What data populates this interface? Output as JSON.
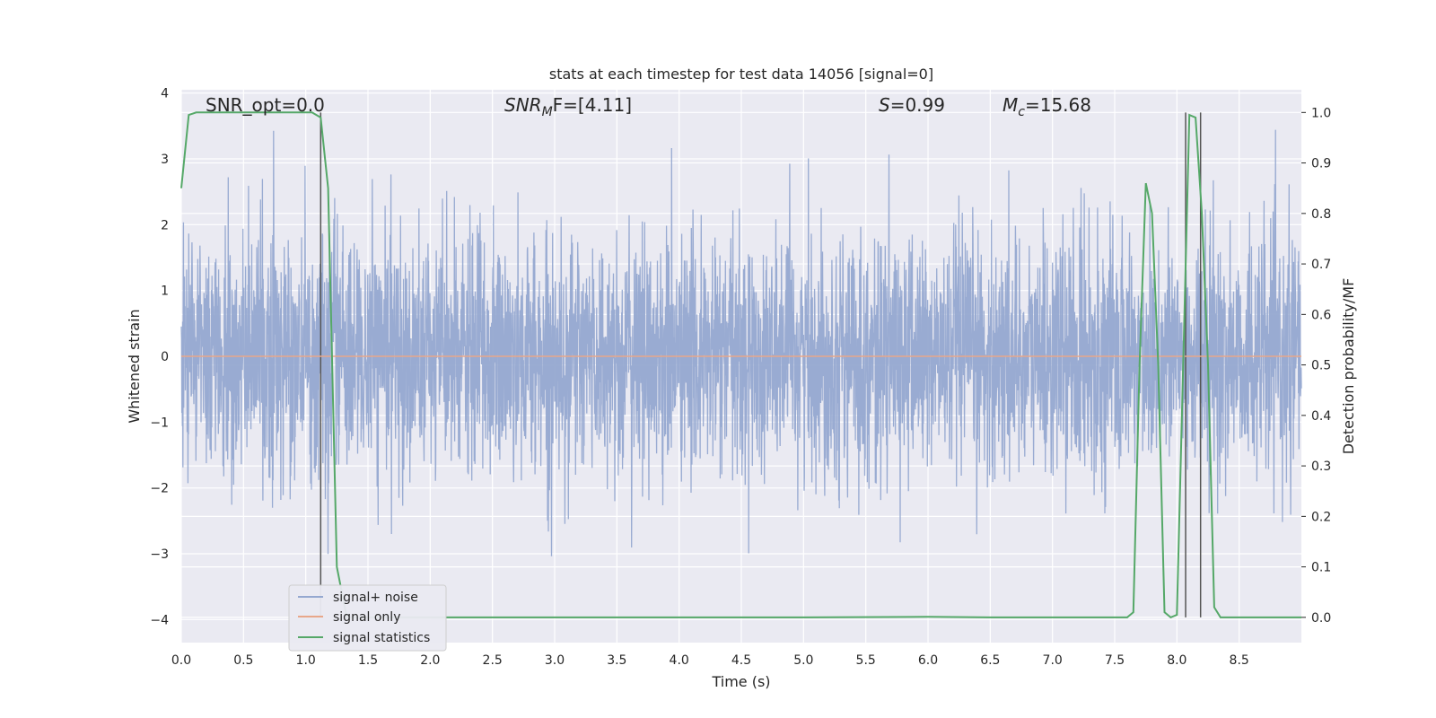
{
  "chart_data": {
    "type": "line",
    "title": "stats at each timestep for test data 14056 [signal=0]",
    "xlabel": "Time (s)",
    "ylabel": "Whitened strain",
    "y2label": "Detection probability/MF",
    "xlim": [
      0.0,
      9.0
    ],
    "ylim": [
      -4.35,
      4.05
    ],
    "y2lim": [
      -0.05,
      1.045
    ],
    "xticks": [
      "0.0",
      "0.5",
      "1.0",
      "1.5",
      "2.0",
      "2.5",
      "3.0",
      "3.5",
      "4.0",
      "4.5",
      "5.0",
      "5.5",
      "6.0",
      "6.5",
      "7.0",
      "7.5",
      "8.0",
      "8.5"
    ],
    "yticks": [
      "4",
      "3",
      "2",
      "1",
      "0",
      "−1",
      "−2",
      "−3",
      "−4"
    ],
    "y2ticks": [
      "1.0",
      "0.9",
      "0.8",
      "0.7",
      "0.6",
      "0.5",
      "0.4",
      "0.3",
      "0.2",
      "0.1",
      "0.0"
    ],
    "grid": true,
    "annotations": {
      "snr_opt": "SNR_opt=0.0",
      "snr_mf_italic": "SNR",
      "snr_mf_sub": "M",
      "snr_mf_rest": "F=[4.11]",
      "s_italic": "S",
      "s_rest": "=0.99",
      "mc_italic": "M",
      "mc_sub": "c",
      "mc_rest": "=15.68"
    },
    "vertical_lines_x": [
      1.12,
      8.07,
      8.19
    ],
    "series": [
      {
        "name": "signal+ noise",
        "color": "#95a8d0",
        "axis": "left",
        "description": "whitened noise, approx std 0.9",
        "noise_std": 0.9
      },
      {
        "name": "signal only",
        "color": "#e8a78a",
        "axis": "left",
        "constant": 0.0
      },
      {
        "name": "signal statistics",
        "color": "#55a868",
        "axis": "right",
        "x": [
          0.0,
          0.06,
          0.12,
          0.3,
          0.6,
          0.9,
          1.05,
          1.12,
          1.18,
          1.25,
          1.33,
          1.5,
          3.0,
          5.0,
          6.0,
          6.5,
          7.6,
          7.65,
          7.7,
          7.75,
          7.8,
          7.85,
          7.9,
          7.95,
          8.0,
          8.05,
          8.1,
          8.15,
          8.2,
          8.25,
          8.3,
          8.35,
          8.5,
          9.0
        ],
        "y": [
          0.85,
          0.995,
          1.0,
          1.0,
          1.0,
          1.0,
          1.0,
          0.99,
          0.85,
          0.1,
          0.0,
          0.0,
          0.0,
          0.0,
          0.001,
          0.0,
          0.0,
          0.01,
          0.5,
          0.86,
          0.8,
          0.5,
          0.01,
          0.0,
          0.005,
          0.5,
          0.995,
          0.99,
          0.8,
          0.5,
          0.02,
          0.0,
          0.0,
          0.0
        ]
      }
    ],
    "legend": {
      "placement": "lower-left",
      "entries": [
        "signal+ noise",
        "signal only",
        "signal statistics"
      ]
    }
  },
  "colors": {
    "plot_bg": "#eaeaf2",
    "grid": "#ffffff",
    "vline": "#555555"
  }
}
